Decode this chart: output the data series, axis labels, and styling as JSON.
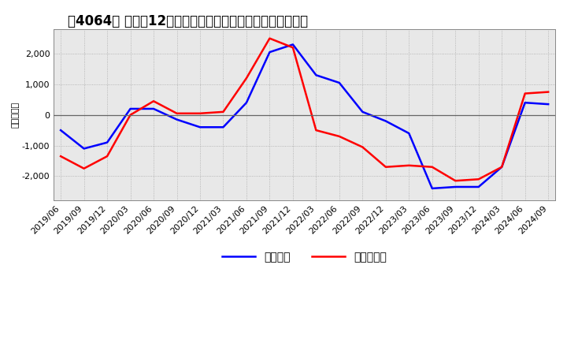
{
  "title": "［4064］ 利益の12か月移動合計の対前年同期増減額の推移",
  "ylabel": "（百万円）",
  "legend_blue": "経常利益",
  "legend_red": "当期純利益",
  "xlabels": [
    "2019/06",
    "2019/09",
    "2019/12",
    "2020/03",
    "2020/06",
    "2020/09",
    "2020/12",
    "2021/03",
    "2021/06",
    "2021/09",
    "2021/12",
    "2022/03",
    "2022/06",
    "2022/09",
    "2022/12",
    "2023/03",
    "2023/06",
    "2023/09",
    "2023/12",
    "2024/03",
    "2024/06",
    "2024/09"
  ],
  "blue_values": [
    -500,
    -1100,
    -900,
    200,
    200,
    -150,
    -400,
    -400,
    400,
    2050,
    2300,
    1300,
    1050,
    100,
    -200,
    -600,
    -2400,
    -2350,
    -2350,
    -1700,
    400,
    350
  ],
  "red_values": [
    -1350,
    -1750,
    -1350,
    0,
    450,
    50,
    50,
    100,
    1200,
    2500,
    2200,
    -500,
    -700,
    -1050,
    -1700,
    -1650,
    -1700,
    -2150,
    -2100,
    -1700,
    700,
    750
  ],
  "ylim": [
    -2800,
    2800
  ],
  "yticks": [
    -2000,
    -1000,
    0,
    1000,
    2000
  ],
  "blue_color": "#0000ff",
  "red_color": "#ff0000",
  "bg_color": "#ffffff",
  "plot_bg": "#e8e8e8",
  "grid_color": "#999999",
  "title_fontsize": 12,
  "axis_fontsize": 8,
  "legend_fontsize": 10
}
